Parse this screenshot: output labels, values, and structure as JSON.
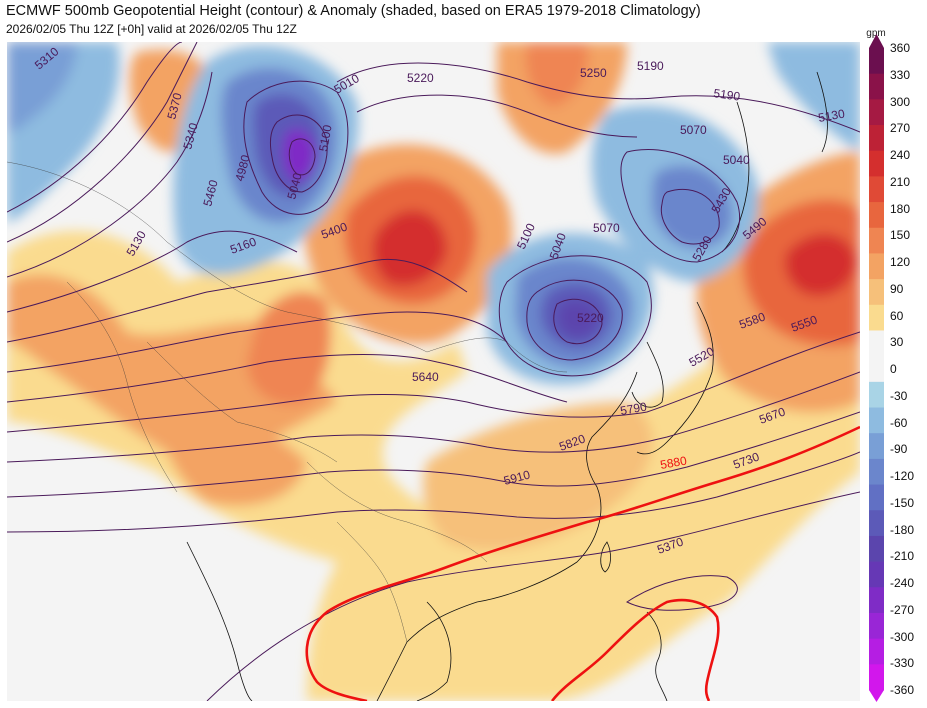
{
  "header": {
    "title": "ECMWF 500mb Geopotential Height (contour) & Anomaly (shaded, based on ERA5 1979-2018 Climatology)",
    "subtitle": "2026/02/05 Thu 12Z [+0h] valid at 2026/02/05 Thu 12Z"
  },
  "colorbar": {
    "unit": "gpm",
    "ticks": [
      "360",
      "330",
      "300",
      "270",
      "240",
      "210",
      "180",
      "150",
      "120",
      "90",
      "60",
      "30",
      "0",
      "-30",
      "-60",
      "-90",
      "-120",
      "-150",
      "-180",
      "-210",
      "-240",
      "-270",
      "-300",
      "-330",
      "-360"
    ],
    "colors": [
      "#6b0f4f",
      "#8a1249",
      "#a51a43",
      "#bd2236",
      "#d42f2e",
      "#e04a36",
      "#e8663e",
      "#ef8552",
      "#f3a363",
      "#f6c07a",
      "#fadb8f",
      "#f4f4f4",
      "#f4f4f4",
      "#a9d4e6",
      "#8ebbe0",
      "#799fd6",
      "#6b86cc",
      "#6170c4",
      "#5c5ab8",
      "#5b45ad",
      "#6638b5",
      "#7f2cc6",
      "#9926d6",
      "#b51ee3",
      "#d217ec"
    ]
  },
  "map": {
    "background": "#f4f4f4",
    "coast_color": "#111111",
    "contour_color": "#4a1a5a",
    "contour_5880_color": "#ee1111",
    "height_labels": [
      {
        "text": "5310",
        "color": "#4a1a5a"
      },
      {
        "text": "5370",
        "color": "#4a1a5a"
      },
      {
        "text": "5340",
        "color": "#4a1a5a"
      },
      {
        "text": "5460",
        "color": "#4a1a5a"
      },
      {
        "text": "5130",
        "color": "#4a1a5a"
      },
      {
        "text": "4980",
        "color": "#4a1a5a"
      },
      {
        "text": "5040",
        "color": "#4a1a5a"
      },
      {
        "text": "5010",
        "color": "#4a1a5a"
      },
      {
        "text": "5100",
        "color": "#4a1a5a"
      },
      {
        "text": "5220",
        "color": "#4a1a5a"
      },
      {
        "text": "5250",
        "color": "#4a1a5a"
      },
      {
        "text": "5190",
        "color": "#4a1a5a"
      },
      {
        "text": "5190",
        "color": "#4a1a5a"
      },
      {
        "text": "5130",
        "color": "#4a1a5a"
      },
      {
        "text": "5070",
        "color": "#4a1a5a"
      },
      {
        "text": "5040",
        "color": "#4a1a5a"
      },
      {
        "text": "5430",
        "color": "#4a1a5a"
      },
      {
        "text": "5400",
        "color": "#4a1a5a"
      },
      {
        "text": "5160",
        "color": "#4a1a5a"
      },
      {
        "text": "5100",
        "color": "#4a1a5a"
      },
      {
        "text": "5070",
        "color": "#4a1a5a"
      },
      {
        "text": "5040",
        "color": "#4a1a5a"
      },
      {
        "text": "5220",
        "color": "#4a1a5a"
      },
      {
        "text": "5280",
        "color": "#4a1a5a"
      },
      {
        "text": "5490",
        "color": "#4a1a5a"
      },
      {
        "text": "5580",
        "color": "#4a1a5a"
      },
      {
        "text": "5550",
        "color": "#4a1a5a"
      },
      {
        "text": "5520",
        "color": "#4a1a5a"
      },
      {
        "text": "5640",
        "color": "#4a1a5a"
      },
      {
        "text": "5790",
        "color": "#4a1a5a"
      },
      {
        "text": "5670",
        "color": "#4a1a5a"
      },
      {
        "text": "5820",
        "color": "#4a1a5a"
      },
      {
        "text": "5880",
        "color": "#ee1111"
      },
      {
        "text": "5730",
        "color": "#4a1a5a"
      },
      {
        "text": "5910",
        "color": "#4a1a5a"
      },
      {
        "text": "5370",
        "color": "#4a1a5a"
      }
    ]
  }
}
